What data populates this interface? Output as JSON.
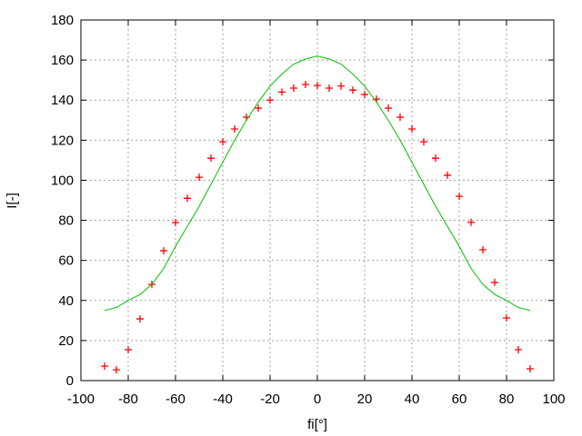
{
  "chart_data": {
    "type": "scatter",
    "xlabel": "fi[°]",
    "ylabel": "I[-]",
    "xlim": [
      -100,
      100
    ],
    "ylim": [
      0,
      180
    ],
    "xticks": [
      -100,
      -80,
      -60,
      -40,
      -20,
      0,
      20,
      40,
      60,
      80,
      100
    ],
    "yticks": [
      0,
      20,
      40,
      60,
      80,
      100,
      120,
      140,
      160,
      180
    ],
    "grid": true,
    "series": [
      {
        "type": "scatter",
        "marker": "plus",
        "color": "#ff0000",
        "x": [
          -90,
          -85,
          -80,
          -75,
          -70,
          -65,
          -60,
          -55,
          -50,
          -45,
          -40,
          -35,
          -30,
          -25,
          -20,
          -15,
          -10,
          -5,
          0,
          5,
          10,
          15,
          20,
          25,
          30,
          35,
          40,
          45,
          50,
          55,
          60,
          65,
          70,
          75,
          80,
          85,
          90
        ],
        "y": [
          7.2,
          5.4,
          15.4,
          30.8,
          48,
          64.8,
          78.9,
          91,
          101.5,
          111,
          119.2,
          125.6,
          131.5,
          136,
          140,
          144,
          146,
          147.8,
          147.3,
          146,
          147,
          145,
          142.8,
          140.5,
          136,
          131.5,
          125.6,
          119.2,
          111,
          102.5,
          92,
          79,
          65.3,
          49,
          31.3,
          15.4,
          5.9
        ]
      },
      {
        "type": "line",
        "color": "#00c000",
        "x": [
          -90,
          -85,
          -80,
          -75,
          -70,
          -65,
          -60,
          -55,
          -50,
          -45,
          -40,
          -35,
          -30,
          -25,
          -20,
          -15,
          -10,
          -5,
          0,
          5,
          10,
          15,
          20,
          25,
          30,
          35,
          40,
          45,
          50,
          55,
          60,
          65,
          70,
          75,
          80,
          85,
          90
        ],
        "y": [
          35,
          36.5,
          40,
          43,
          48,
          56,
          67,
          77,
          87,
          98,
          109,
          120,
          130,
          139,
          147,
          153,
          158,
          160.5,
          162,
          160.5,
          158,
          153,
          147,
          139,
          130,
          120,
          109,
          98,
          87,
          77,
          67,
          56,
          48,
          43,
          40,
          36.5,
          35
        ]
      }
    ]
  }
}
